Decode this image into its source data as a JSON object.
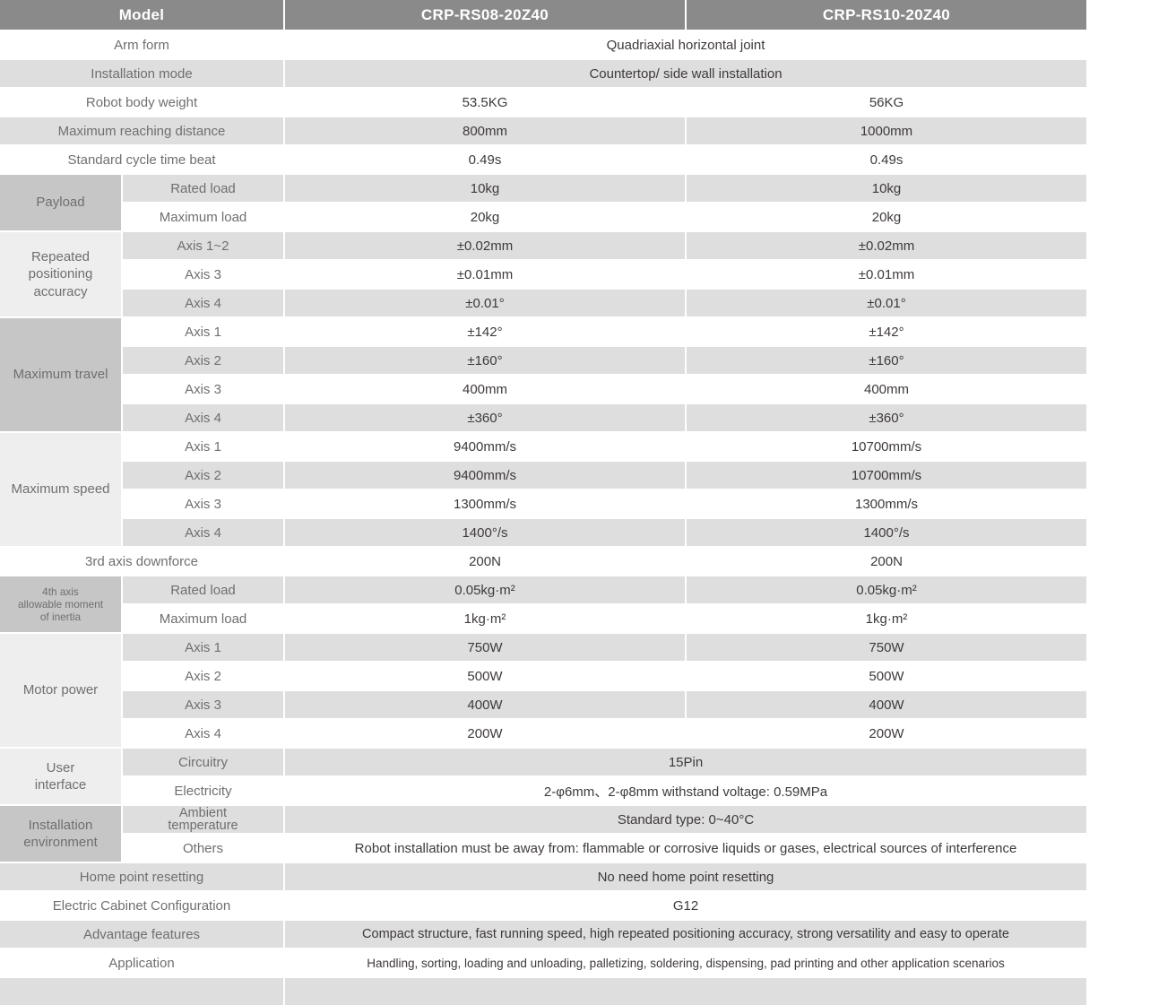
{
  "colors": {
    "header_bg": "#8a8a8a",
    "row_gray": "#dedede",
    "category_dark": "#c6c6c6",
    "category_light": "#eeeeee",
    "label_text": "#6f6f6f",
    "value_text": "#3e3a39"
  },
  "header": {
    "model": "Model",
    "col_a": "CRP-RS08-20Z40",
    "col_b": "CRP-RS10-20Z40"
  },
  "rows": [
    {
      "label": "Arm form",
      "value": "Quadriaxial horizontal joint",
      "shade": "w"
    },
    {
      "label": "Installation mode",
      "value": "Countertop/ side wall installation",
      "shade": "g"
    },
    {
      "label": "Robot body weight",
      "values": [
        "53.5KG",
        "56KG"
      ],
      "shade": "w"
    },
    {
      "label": "Maximum reaching distance",
      "values": [
        "800mm",
        "1000mm"
      ],
      "shade": "g"
    },
    {
      "label": "Standard cycle time beat",
      "values": [
        "0.49s",
        "0.49s"
      ],
      "shade": "w"
    },
    {
      "group": {
        "label": "Payload",
        "span": 2,
        "tone": "dark"
      },
      "sub": "Rated load",
      "values": [
        "10kg",
        "10kg"
      ],
      "shade": "g"
    },
    {
      "sub": "Maximum load",
      "values": [
        "20kg",
        "20kg"
      ],
      "shade": "w"
    },
    {
      "group": {
        "label": "Repeated\npositioning\naccuracy",
        "span": 3,
        "tone": "light"
      },
      "sub": "Axis 1~2",
      "values": [
        "±0.02mm",
        "±0.02mm"
      ],
      "shade": "g"
    },
    {
      "sub": "Axis 3",
      "values": [
        "±0.01mm",
        "±0.01mm"
      ],
      "shade": "w"
    },
    {
      "sub": "Axis 4",
      "values": [
        "±0.01°",
        "±0.01°"
      ],
      "shade": "g"
    },
    {
      "group": {
        "label": "Maximum travel",
        "span": 4,
        "tone": "dark"
      },
      "sub": "Axis 1",
      "values": [
        "±142°",
        "±142°"
      ],
      "shade": "w"
    },
    {
      "sub": "Axis 2",
      "values": [
        "±160°",
        "±160°"
      ],
      "shade": "g"
    },
    {
      "sub": "Axis 3",
      "values": [
        "400mm",
        "400mm"
      ],
      "shade": "w"
    },
    {
      "sub": "Axis 4",
      "values": [
        "±360°",
        "±360°"
      ],
      "shade": "g"
    },
    {
      "group": {
        "label": "Maximum speed",
        "span": 4,
        "tone": "light"
      },
      "sub": "Axis 1",
      "values": [
        "9400mm/s",
        "10700mm/s"
      ],
      "shade": "w"
    },
    {
      "sub": "Axis 2",
      "values": [
        "9400mm/s",
        "10700mm/s"
      ],
      "shade": "g"
    },
    {
      "sub": "Axis 3",
      "values": [
        "1300mm/s",
        "1300mm/s"
      ],
      "shade": "w"
    },
    {
      "sub": "Axis 4",
      "values": [
        "1400°/s",
        "1400°/s"
      ],
      "shade": "g"
    },
    {
      "label": "3rd axis downforce",
      "values": [
        "200N",
        "200N"
      ],
      "shade": "w"
    },
    {
      "group": {
        "label": "4th axis\nallowable moment\nof inertia",
        "span": 2,
        "tone": "dark",
        "small": true
      },
      "sub": "Rated load",
      "values": [
        "0.05kg·m²",
        "0.05kg·m²"
      ],
      "shade": "g"
    },
    {
      "sub": "Maximum load",
      "values": [
        "1kg·m²",
        "1kg·m²"
      ],
      "shade": "w"
    },
    {
      "group": {
        "label": "Motor power",
        "span": 4,
        "tone": "light"
      },
      "sub": "Axis 1",
      "values": [
        "750W",
        "750W"
      ],
      "shade": "g"
    },
    {
      "sub": "Axis 2",
      "values": [
        "500W",
        "500W"
      ],
      "shade": "w"
    },
    {
      "sub": "Axis 3",
      "values": [
        "400W",
        "400W"
      ],
      "shade": "g"
    },
    {
      "sub": "Axis 4",
      "values": [
        "200W",
        "200W"
      ],
      "shade": "w"
    },
    {
      "group": {
        "label": "User\ninterface",
        "span": 2,
        "tone": "light"
      },
      "sub": "Circuitry",
      "value": "15Pin",
      "shade": "g"
    },
    {
      "sub": "Electricity",
      "value": "2-φ6mm、2-φ8mm withstand voltage: 0.59MPa",
      "shade": "w"
    },
    {
      "group": {
        "label": "Installation\nenvironment",
        "span": 2,
        "tone": "dark"
      },
      "sub": "Ambient\ntemperature",
      "sub_small": true,
      "value": "Standard type: 0~40°C",
      "shade": "g"
    },
    {
      "sub": "Others",
      "value": "Robot installation must be away from: flammable or corrosive liquids or gases, electrical sources of interference",
      "shade": "w"
    },
    {
      "label": "Home point resetting",
      "value": "No need home point resetting",
      "shade": "g"
    },
    {
      "label": "Electric Cabinet Configuration",
      "value": "G12",
      "shade": "w"
    },
    {
      "label": "Advantage features",
      "value": "Compact structure, fast running speed, high repeated positioning accuracy, strong versatility and easy to operate",
      "shade": "g",
      "size": "sm"
    },
    {
      "label": "Application",
      "value": "Handling, sorting, loading and unloading, palletizing, soldering, dispensing, pad printing and other application scenarios",
      "shade": "w",
      "size": "xs"
    },
    {
      "label": "",
      "value": "",
      "shade": "g",
      "partial": true
    }
  ]
}
